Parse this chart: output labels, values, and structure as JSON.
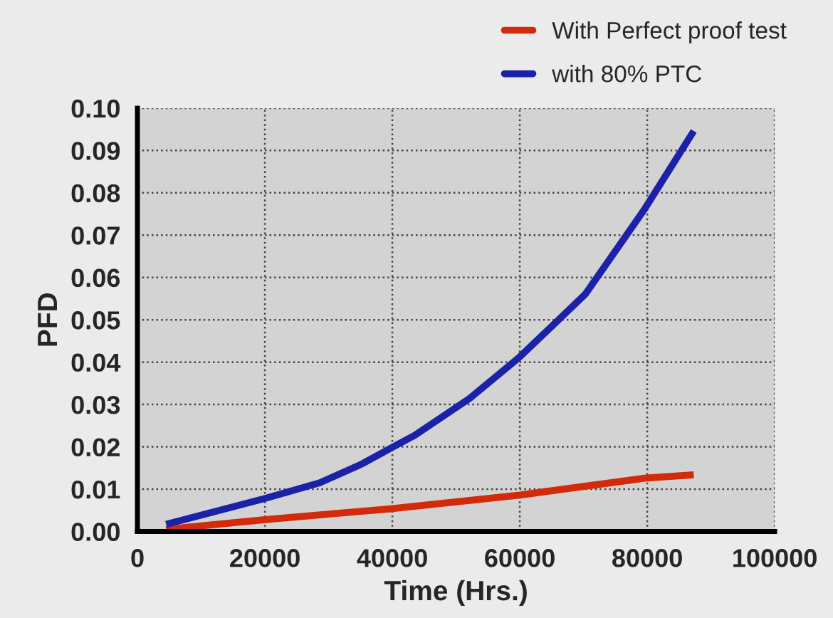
{
  "chart_data": {
    "type": "line",
    "xlabel": "Time (Hrs.)",
    "ylabel": "PFD",
    "xlim": [
      0,
      100000
    ],
    "xticks": [
      0,
      20000,
      40000,
      60000,
      80000,
      100000
    ],
    "ylim": [
      0,
      0.1
    ],
    "yticks": [
      {
        "value": 0,
        "label": "0.00"
      },
      0.01,
      0.02,
      0.03,
      0.04,
      0.05,
      0.06,
      0.07,
      0.08,
      0.09,
      {
        "value": 0.1,
        "label": "0.10"
      }
    ],
    "grid": true,
    "legend": "top right",
    "marker": "none",
    "line_style": "solid",
    "series": [
      {
        "name": "With Perfect proof test",
        "color": "#d42a0c",
        "x": [
          4500,
          20000,
          40000,
          60000,
          79600,
          87300
        ],
        "values": [
          0.0005,
          0.0028,
          0.0054,
          0.0086,
          0.0126,
          0.0134
        ]
      },
      {
        "name": "with 80% PTC",
        "color": "#1c22a8",
        "x": [
          4500,
          20000,
          28600,
          35300,
          40000,
          43500,
          52100,
          59900,
          70300,
          79600,
          87300
        ],
        "values": [
          0.0017,
          0.0078,
          0.0115,
          0.016,
          0.0199,
          0.0227,
          0.0314,
          0.0411,
          0.0561,
          0.0762,
          0.0946
        ]
      }
    ]
  }
}
